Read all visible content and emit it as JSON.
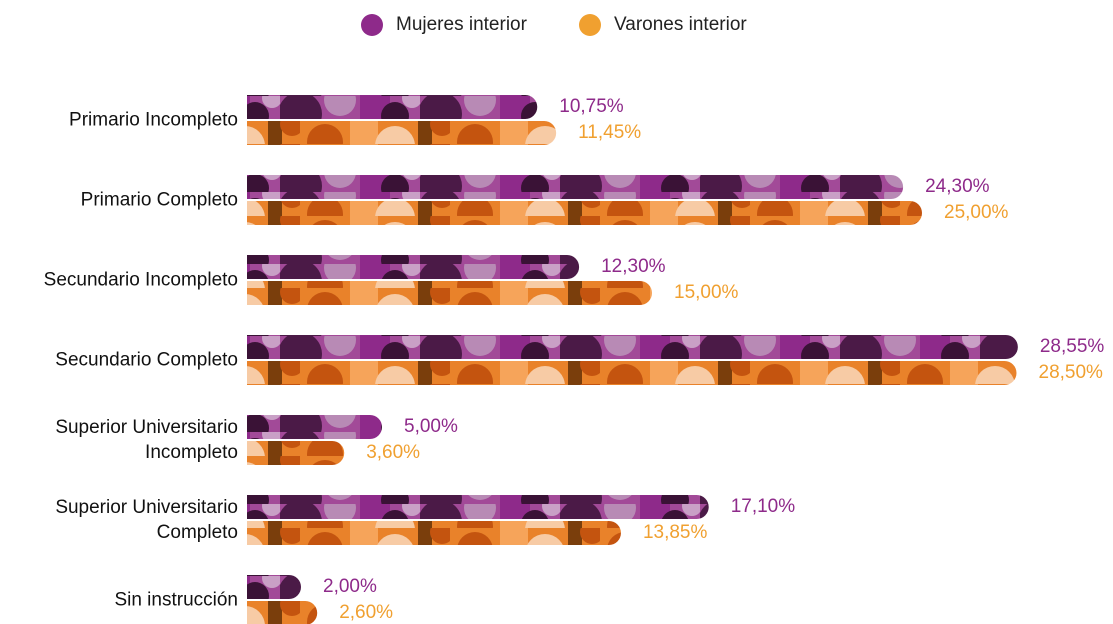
{
  "chart_data": {
    "type": "bar",
    "orientation": "horizontal",
    "categories": [
      "Primario Incompleto",
      "Primario Completo",
      "Secundario Incompleto",
      "Secundario Completo",
      "Superior Universitario Incompleto",
      "Superior Universitario Completo",
      "Sin instrucción"
    ],
    "series": [
      {
        "name": "Mujeres interior",
        "color": "#8e2a8a",
        "values": [
          10.75,
          24.3,
          12.3,
          28.55,
          5.0,
          17.1,
          2.0
        ],
        "value_labels": [
          "10,75%",
          "24,30%",
          "12,30%",
          "28,55%",
          "5,00%",
          "17,10%",
          "2,00%"
        ]
      },
      {
        "name": "Varones interior",
        "color": "#f0a030",
        "values": [
          11.45,
          25.0,
          15.0,
          28.5,
          3.6,
          13.85,
          2.6
        ],
        "value_labels": [
          "11,45%",
          "25,00%",
          "15,00%",
          "28,50%",
          "3,60%",
          "13,85%",
          "2,60%"
        ]
      }
    ],
    "legend": "top"
  }
}
